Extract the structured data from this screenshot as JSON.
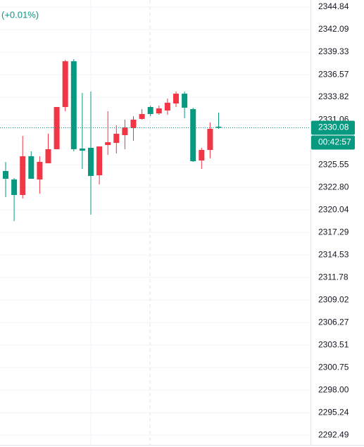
{
  "chart_data": {
    "type": "candlestick",
    "change_label": "(+0.01%)",
    "up_color": "#f23645",
    "down_color": "#089981",
    "grid": true,
    "ylim": [
      2291.31,
      2345.7
    ],
    "yticks": [
      2344.84,
      2342.09,
      2339.33,
      2336.57,
      2333.82,
      2331.06,
      2325.55,
      {
        "value": 2322.8,
        "label": "2322.80"
      },
      2320.04,
      2317.29,
      2314.53,
      2311.78,
      2309.02,
      2306.27,
      2303.51,
      2300.75,
      {
        "value": 2298,
        "label": "2298.00"
      },
      2295.24,
      2292.49
    ],
    "last_price": 2330.08,
    "countdown": "00:42:57",
    "candles": [
      {
        "open": 2324.79,
        "high": 2325.91,
        "low": 2321.6,
        "close": 2323.84
      },
      {
        "open": 2323.76,
        "high": 2323.93,
        "low": 2318.68,
        "close": 2321.86
      },
      {
        "open": 2321.86,
        "high": 2329.09,
        "low": 2321.43,
        "close": 2326.6
      },
      {
        "open": 2326.6,
        "high": 2327.2,
        "low": 2323.93,
        "close": 2323.84
      },
      {
        "open": 2323.76,
        "high": 2326.6,
        "low": 2322.03,
        "close": 2325.91
      },
      {
        "open": 2325.74,
        "high": 2329.35,
        "low": 2325.74,
        "close": 2327.46
      },
      {
        "open": 2327.46,
        "high": 2332.62,
        "low": 2327.46,
        "close": 2332.62
      },
      {
        "open": 2332.62,
        "high": 2338.39,
        "low": 2332.1,
        "close": 2338.21
      },
      {
        "open": 2338.21,
        "high": 2338.47,
        "low": 2327.2,
        "close": 2327.46
      },
      {
        "open": 2327.54,
        "high": 2334.34,
        "low": 2325.05,
        "close": 2327.28
      },
      {
        "open": 2327.63,
        "high": 2334.51,
        "low": 2319.45,
        "close": 2324.19
      },
      {
        "open": 2324.27,
        "high": 2327.8,
        "low": 2323.15,
        "close": 2327.8
      },
      {
        "open": 2327.97,
        "high": 2332.1,
        "low": 2326.77,
        "close": 2328.32
      },
      {
        "open": 2328.23,
        "high": 2330.38,
        "low": 2326.94,
        "close": 2329.35
      },
      {
        "open": 2329.18,
        "high": 2331.07,
        "low": 2327.46,
        "close": 2330.12
      },
      {
        "open": 2330.04,
        "high": 2331.5,
        "low": 2328.49,
        "close": 2331.07
      },
      {
        "open": 2331.16,
        "high": 2332.36,
        "low": 2331.07,
        "close": 2331.76
      },
      {
        "open": 2332.62,
        "high": 2332.79,
        "low": 2331.5,
        "close": 2331.76
      },
      {
        "open": 2331.84,
        "high": 2332.79,
        "low": 2331.67,
        "close": 2332.45
      },
      {
        "open": 2332.19,
        "high": 2333.65,
        "low": 2331.67,
        "close": 2333.14
      },
      {
        "open": 2333.05,
        "high": 2334.51,
        "low": 2332.62,
        "close": 2334.25
      },
      {
        "open": 2334.25,
        "high": 2334.51,
        "low": 2331.24,
        "close": 2332.53
      },
      {
        "open": 2332.36,
        "high": 2332.53,
        "low": 2325.91,
        "close": 2325.99
      },
      {
        "open": 2326.08,
        "high": 2327.63,
        "low": 2325.05,
        "close": 2327.37
      },
      {
        "open": 2327.37,
        "high": 2330.73,
        "low": 2326.34,
        "close": 2329.95
      },
      {
        "open": 2330.21,
        "high": 2331.93,
        "low": 2329.95,
        "close": 2330.08
      }
    ]
  }
}
